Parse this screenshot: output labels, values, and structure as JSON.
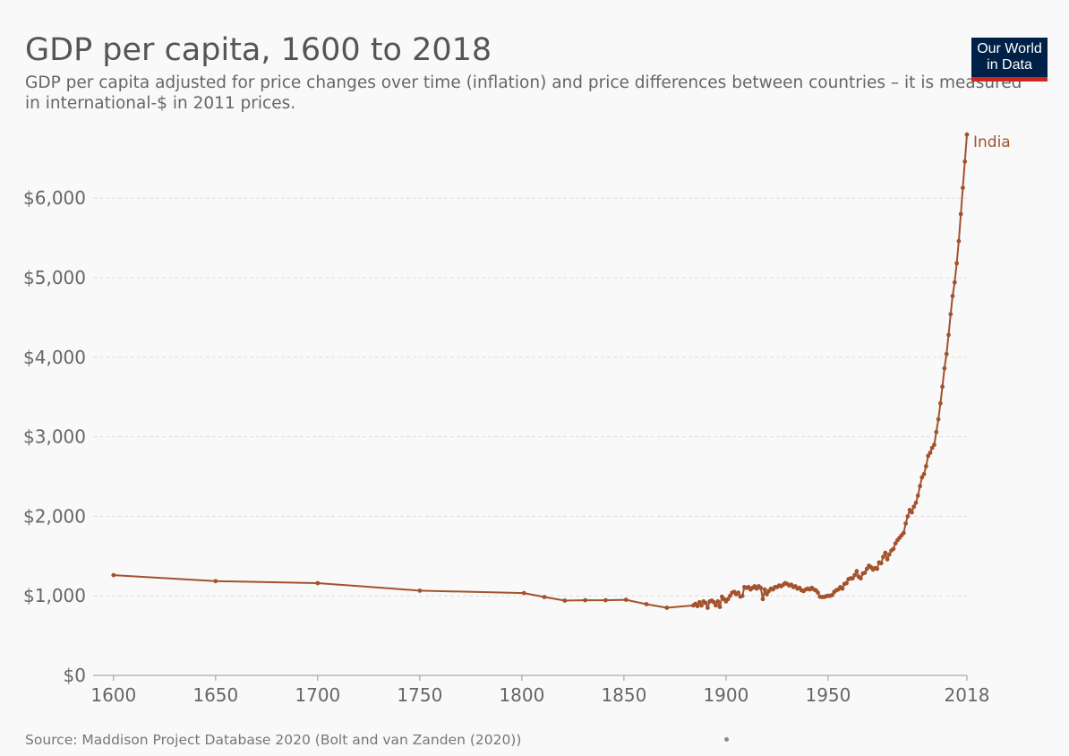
{
  "header": {
    "title": "GDP per capita, 1600 to 2018",
    "subtitle": "GDP per capita adjusted for price changes over time (inflation) and price differences between countries – it is measured in international-$ in 2011 prices."
  },
  "logo": {
    "line1": "Our World",
    "line2": "in Data"
  },
  "footer": {
    "source": "Source: Maddison Project Database 2020 (Bolt and van Zanden (2020))"
  },
  "colors": {
    "series": "#a2522d",
    "grid": "#dddddd",
    "axis": "#999999"
  },
  "chart_data": {
    "type": "line",
    "xlim": [
      1590,
      2018
    ],
    "ylim": [
      0,
      6900
    ],
    "grid": "horizontal dashed",
    "y_ticks": [
      {
        "value": 0,
        "label": "$0"
      },
      {
        "value": 1000,
        "label": "$1,000"
      },
      {
        "value": 2000,
        "label": "$2,000"
      },
      {
        "value": 3000,
        "label": "$3,000"
      },
      {
        "value": 4000,
        "label": "$4,000"
      },
      {
        "value": 5000,
        "label": "$5,000"
      },
      {
        "value": 6000,
        "label": "$6,000"
      }
    ],
    "x_ticks": [
      {
        "value": 1600,
        "label": "1600"
      },
      {
        "value": 1650,
        "label": "1650"
      },
      {
        "value": 1700,
        "label": "1700"
      },
      {
        "value": 1750,
        "label": "1750"
      },
      {
        "value": 1800,
        "label": "1800"
      },
      {
        "value": 1850,
        "label": "1850"
      },
      {
        "value": 1900,
        "label": "1900"
      },
      {
        "value": 1950,
        "label": "1950"
      },
      {
        "value": 2018,
        "label": "2018"
      }
    ],
    "series": [
      {
        "name": "India",
        "points": [
          [
            1600,
            1260
          ],
          [
            1650,
            1185
          ],
          [
            1700,
            1160
          ],
          [
            1750,
            1065
          ],
          [
            1801,
            1035
          ],
          [
            1811,
            985
          ],
          [
            1821,
            940
          ],
          [
            1831,
            945
          ],
          [
            1841,
            945
          ],
          [
            1851,
            950
          ],
          [
            1861,
            895
          ],
          [
            1871,
            850
          ],
          [
            1884,
            880
          ],
          [
            1885,
            900
          ],
          [
            1886,
            870
          ],
          [
            1887,
            920
          ],
          [
            1888,
            880
          ],
          [
            1889,
            930
          ],
          [
            1890,
            910
          ],
          [
            1891,
            850
          ],
          [
            1892,
            930
          ],
          [
            1893,
            940
          ],
          [
            1894,
            920
          ],
          [
            1895,
            880
          ],
          [
            1896,
            930
          ],
          [
            1897,
            860
          ],
          [
            1898,
            990
          ],
          [
            1899,
            960
          ],
          [
            1900,
            930
          ],
          [
            1901,
            960
          ],
          [
            1902,
            1000
          ],
          [
            1903,
            1040
          ],
          [
            1904,
            1050
          ],
          [
            1905,
            1020
          ],
          [
            1906,
            1040
          ],
          [
            1907,
            990
          ],
          [
            1908,
            1000
          ],
          [
            1909,
            1110
          ],
          [
            1910,
            1100
          ],
          [
            1911,
            1110
          ],
          [
            1912,
            1080
          ],
          [
            1913,
            1100
          ],
          [
            1914,
            1120
          ],
          [
            1915,
            1090
          ],
          [
            1916,
            1120
          ],
          [
            1917,
            1100
          ],
          [
            1918,
            960
          ],
          [
            1919,
            1080
          ],
          [
            1920,
            1020
          ],
          [
            1921,
            1060
          ],
          [
            1922,
            1090
          ],
          [
            1923,
            1080
          ],
          [
            1924,
            1110
          ],
          [
            1925,
            1110
          ],
          [
            1926,
            1130
          ],
          [
            1927,
            1120
          ],
          [
            1928,
            1140
          ],
          [
            1929,
            1160
          ],
          [
            1930,
            1150
          ],
          [
            1931,
            1130
          ],
          [
            1932,
            1140
          ],
          [
            1933,
            1110
          ],
          [
            1934,
            1120
          ],
          [
            1935,
            1090
          ],
          [
            1936,
            1100
          ],
          [
            1937,
            1070
          ],
          [
            1938,
            1060
          ],
          [
            1939,
            1080
          ],
          [
            1940,
            1090
          ],
          [
            1941,
            1080
          ],
          [
            1942,
            1100
          ],
          [
            1943,
            1080
          ],
          [
            1944,
            1070
          ],
          [
            1945,
            1040
          ],
          [
            1946,
            990
          ],
          [
            1947,
            985
          ],
          [
            1948,
            985
          ],
          [
            1949,
            995
          ],
          [
            1950,
            1000
          ],
          [
            1951,
            1000
          ],
          [
            1952,
            1010
          ],
          [
            1953,
            1050
          ],
          [
            1954,
            1070
          ],
          [
            1955,
            1080
          ],
          [
            1956,
            1110
          ],
          [
            1957,
            1090
          ],
          [
            1958,
            1150
          ],
          [
            1959,
            1160
          ],
          [
            1960,
            1210
          ],
          [
            1961,
            1220
          ],
          [
            1962,
            1220
          ],
          [
            1963,
            1260
          ],
          [
            1964,
            1310
          ],
          [
            1965,
            1240
          ],
          [
            1966,
            1220
          ],
          [
            1967,
            1280
          ],
          [
            1968,
            1290
          ],
          [
            1969,
            1340
          ],
          [
            1970,
            1380
          ],
          [
            1971,
            1360
          ],
          [
            1972,
            1330
          ],
          [
            1973,
            1350
          ],
          [
            1974,
            1340
          ],
          [
            1975,
            1420
          ],
          [
            1976,
            1410
          ],
          [
            1977,
            1490
          ],
          [
            1978,
            1540
          ],
          [
            1979,
            1460
          ],
          [
            1980,
            1520
          ],
          [
            1981,
            1570
          ],
          [
            1982,
            1590
          ],
          [
            1983,
            1660
          ],
          [
            1984,
            1700
          ],
          [
            1985,
            1730
          ],
          [
            1986,
            1760
          ],
          [
            1987,
            1790
          ],
          [
            1988,
            1910
          ],
          [
            1989,
            2000
          ],
          [
            1990,
            2080
          ],
          [
            1991,
            2050
          ],
          [
            1992,
            2120
          ],
          [
            1993,
            2170
          ],
          [
            1994,
            2260
          ],
          [
            1995,
            2380
          ],
          [
            1996,
            2490
          ],
          [
            1997,
            2530
          ],
          [
            1998,
            2630
          ],
          [
            1999,
            2760
          ],
          [
            2000,
            2800
          ],
          [
            2001,
            2860
          ],
          [
            2002,
            2900
          ],
          [
            2003,
            3060
          ],
          [
            2004,
            3220
          ],
          [
            2005,
            3420
          ],
          [
            2006,
            3630
          ],
          [
            2007,
            3860
          ],
          [
            2008,
            4040
          ],
          [
            2009,
            4280
          ],
          [
            2010,
            4540
          ],
          [
            2011,
            4770
          ],
          [
            2012,
            4940
          ],
          [
            2013,
            5180
          ],
          [
            2014,
            5460
          ],
          [
            2015,
            5800
          ],
          [
            2016,
            6130
          ],
          [
            2017,
            6460
          ],
          [
            2018,
            6800
          ]
        ]
      }
    ]
  }
}
